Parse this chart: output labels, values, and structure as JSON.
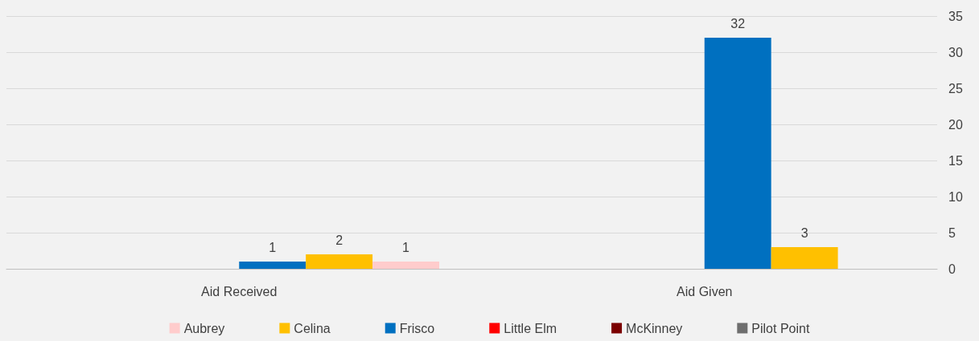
{
  "chart_data": {
    "type": "bar",
    "categories": [
      "Aid Received",
      "Aid Given"
    ],
    "series": [
      {
        "name": "Aubrey",
        "color": "#ffcccc",
        "values": [
          1,
          null
        ],
        "value_labels": [
          "1",
          null
        ]
      },
      {
        "name": "Celina",
        "color": "#ffc000",
        "values": [
          2,
          3
        ],
        "value_labels": [
          "2",
          "3"
        ]
      },
      {
        "name": "Frisco",
        "color": "#0070c0",
        "values": [
          1,
          32
        ],
        "value_labels": [
          "1",
          "32"
        ]
      },
      {
        "name": "Little Elm",
        "color": "#ff0000",
        "values": [
          null,
          null
        ]
      },
      {
        "name": "McKinney",
        "color": "#7b0000",
        "values": [
          null,
          null
        ]
      },
      {
        "name": "Pilot Point",
        "color": "#6e6e6e",
        "values": [
          null,
          null
        ]
      }
    ],
    "ylim": [
      0,
      35
    ],
    "yticks": [
      0,
      5,
      10,
      15,
      20,
      25,
      30,
      35
    ],
    "grid": "y",
    "legend": "bottom"
  }
}
